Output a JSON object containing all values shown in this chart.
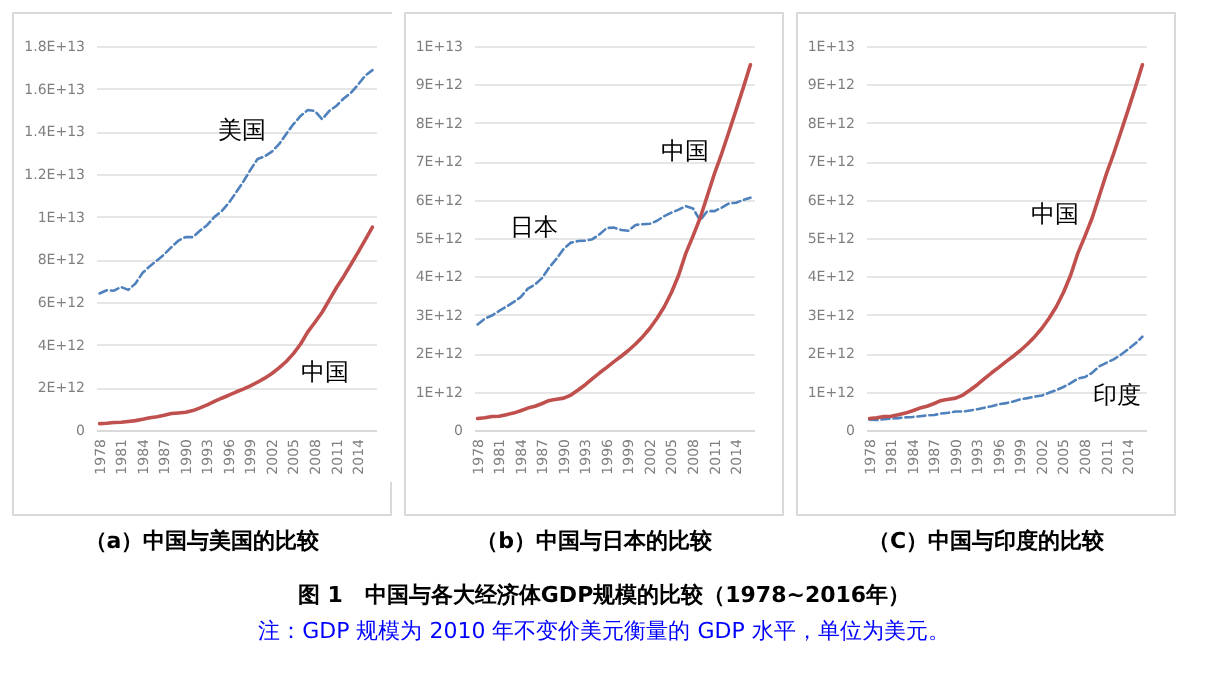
{
  "chart_data": [
    {
      "type": "line",
      "title": "（a）中国与美国的比较",
      "categories": [
        "1978",
        null,
        null,
        "1981",
        null,
        null,
        "1984",
        null,
        null,
        "1987",
        null,
        null,
        "1990",
        null,
        null,
        "1993",
        null,
        null,
        "1996",
        null,
        null,
        "1999",
        null,
        null,
        "2002",
        null,
        null,
        "2005",
        null,
        null,
        "2008",
        null,
        null,
        "2011",
        null,
        null,
        "2014",
        null,
        null
      ],
      "series": [
        {
          "color": "#4f81bd",
          "line_style": "dashed",
          "values": [
            6400000000000.0,
            6550000000000.0,
            6530000000000.0,
            6700000000000.0,
            6570000000000.0,
            6870000000000.0,
            7370000000000.0,
            7680000000000.0,
            7950000000000.0,
            8230000000000.0,
            8570000000000.0,
            8880000000000.0,
            9050000000000.0,
            9040000000000.0,
            9350000000000.0,
            9610000000000.0,
            9990000000000.0,
            10260000000000.0,
            10650000000000.0,
            11130000000000.0,
            11630000000000.0,
            12190000000000.0,
            12700000000000.0,
            12830000000000.0,
            13050000000000.0,
            13400000000000.0,
            13880000000000.0,
            14340000000000.0,
            14720000000000.0,
            15000000000000.0,
            14950000000000.0,
            14570000000000.0,
            14960000000000.0,
            15200000000000.0,
            15540000000000.0,
            15800000000000.0,
            16190000000000.0,
            16610000000000.0,
            16870000000000.0
          ]
        },
        {
          "color": "#c0504d",
          "line_style": "solid",
          "values": [
            300000000000.0,
            320000000000.0,
            350000000000.0,
            360000000000.0,
            400000000000.0,
            440000000000.0,
            500000000000.0,
            570000000000.0,
            620000000000.0,
            690000000000.0,
            770000000000.0,
            800000000000.0,
            830000000000.0,
            910000000000.0,
            1040000000000.0,
            1180000000000.0,
            1340000000000.0,
            1490000000000.0,
            1630000000000.0,
            1780000000000.0,
            1920000000000.0,
            2070000000000.0,
            2240000000000.0,
            2430000000000.0,
            2650000000000.0,
            2910000000000.0,
            3210000000000.0,
            3580000000000.0,
            4030000000000.0,
            4600000000000.0,
            5050000000000.0,
            5520000000000.0,
            6100000000000.0,
            6680000000000.0,
            7200000000000.0,
            7760000000000.0,
            8330000000000.0,
            8910000000000.0,
            9510000000000.0
          ]
        }
      ],
      "ylim": [
        0,
        18000000000000.0
      ],
      "yticks": [
        {
          "value": 0,
          "label": "0"
        },
        {
          "value": 2000000000000.0,
          "label": "2E+12"
        },
        {
          "value": 4000000000000.0,
          "label": "4E+12"
        },
        {
          "value": 6000000000000.0,
          "label": "6E+12"
        },
        {
          "value": 8000000000000.0,
          "label": "8E+12"
        },
        {
          "value": 10000000000000.0,
          "label": "1E+13"
        },
        {
          "value": 12000000000000.0,
          "label": "1.2E+13"
        },
        {
          "value": 14000000000000.0,
          "label": "1.4E+13"
        },
        {
          "value": 16000000000000.0,
          "label": "1.6E+13"
        },
        {
          "value": 18000000000000.0,
          "label": "1.8E+13"
        }
      ],
      "grid": "y",
      "annotations": [
        {
          "text": "美国",
          "x": "2002",
          "y": 13050000000000.0
        },
        {
          "text": "中国",
          "x": "2005",
          "y": 3580000000000.0
        },
        "图 1　中国与各大经济体GDP规模的比较（1978~2016年）",
        "注：GDP 规模为 2010 年不变价美元衡量的 GDP 水平，单位为美元。"
      ]
    },
    {
      "type": "line",
      "title": "（b）中国与日本的比较",
      "categories": [
        "1978",
        null,
        null,
        "1981",
        null,
        null,
        "1984",
        null,
        null,
        "1987",
        null,
        null,
        "1990",
        null,
        null,
        "1993",
        null,
        null,
        "1996",
        null,
        null,
        "1999",
        null,
        null,
        "2002",
        null,
        null,
        "2005",
        null,
        null,
        "2008",
        null,
        null,
        "2011",
        null,
        null,
        "2014",
        null,
        null
      ],
      "series": [
        {
          "color": "#4f81bd",
          "line_style": "dashed",
          "values": [
            2750000000000.0,
            2900000000000.0,
            2980000000000.0,
            3100000000000.0,
            3210000000000.0,
            3330000000000.0,
            3460000000000.0,
            3680000000000.0,
            3790000000000.0,
            3960000000000.0,
            4240000000000.0,
            4460000000000.0,
            4720000000000.0,
            4880000000000.0,
            4920000000000.0,
            4930000000000.0,
            4970000000000.0,
            5100000000000.0,
            5260000000000.0,
            5270000000000.0,
            5210000000000.0,
            5190000000000.0,
            5340000000000.0,
            5360000000000.0,
            5370000000000.0,
            5450000000000.0,
            5570000000000.0,
            5660000000000.0,
            5740000000000.0,
            5830000000000.0,
            5770000000000.0,
            5460000000000.0,
            5700000000000.0,
            5700000000000.0,
            5790000000000.0,
            5900000000000.0,
            5920000000000.0,
            5990000000000.0,
            6050000000000.0
          ]
        },
        {
          "color": "#c0504d",
          "line_style": "solid",
          "values": [
            300000000000.0,
            320000000000.0,
            350000000000.0,
            360000000000.0,
            400000000000.0,
            440000000000.0,
            500000000000.0,
            570000000000.0,
            620000000000.0,
            690000000000.0,
            770000000000.0,
            800000000000.0,
            830000000000.0,
            910000000000.0,
            1040000000000.0,
            1180000000000.0,
            1340000000000.0,
            1490000000000.0,
            1630000000000.0,
            1780000000000.0,
            1920000000000.0,
            2070000000000.0,
            2240000000000.0,
            2430000000000.0,
            2650000000000.0,
            2910000000000.0,
            3210000000000.0,
            3580000000000.0,
            4030000000000.0,
            4600000000000.0,
            5050000000000.0,
            5520000000000.0,
            6100000000000.0,
            6680000000000.0,
            7200000000000.0,
            7760000000000.0,
            8330000000000.0,
            8910000000000.0,
            9510000000000.0
          ]
        }
      ],
      "ylim": [
        0,
        10000000000000.0
      ],
      "yticks": [
        0,
        {
          "value": 1000000000000.0,
          "label": "1E+12"
        },
        {
          "value": 2000000000000.0,
          "label": "2E+12"
        },
        {
          "value": 3000000000000.0,
          "label": "3E+12"
        },
        {
          "value": 4000000000000.0,
          "label": "4E+12"
        },
        {
          "value": 5000000000000.0,
          "label": "5E+12"
        },
        {
          "value": 6000000000000.0,
          "label": "6E+12"
        },
        {
          "value": 7000000000000.0,
          "label": "7E+12"
        },
        {
          "value": 8000000000000.0,
          "label": "8E+12"
        },
        {
          "value": 9000000000000.0,
          "label": "9E+12"
        },
        {
          "value": 10000000000000.0,
          "label": "1E+13"
        }
      ],
      "grid": "y",
      "annotations": [
        {
          "text": "日本",
          "x": "1990",
          "y": 4720000000000.0
        },
        {
          "text": "中国",
          "x": "2011",
          "y": 6680000000000.0
        }
      ]
    },
    {
      "type": "line",
      "title": "（C）中国与印度的比较",
      "categories": [
        "1978",
        null,
        null,
        "1981",
        null,
        null,
        "1984",
        null,
        null,
        "1987",
        null,
        null,
        "1990",
        null,
        null,
        "1993",
        null,
        null,
        "1996",
        null,
        null,
        "1999",
        null,
        null,
        "2002",
        null,
        null,
        "2005",
        null,
        null,
        "2008",
        null,
        null,
        "2011",
        null,
        null,
        "2014",
        null,
        null
      ],
      "series": [
        {
          "color": "#4f81bd",
          "line_style": "dashed",
          "values": [
            270000000000.0,
            260000000000.0,
            280000000000.0,
            300000000000.0,
            310000000000.0,
            330000000000.0,
            340000000000.0,
            360000000000.0,
            380000000000.0,
            390000000000.0,
            430000000000.0,
            450000000000.0,
            480000000000.0,
            480000000000.0,
            510000000000.0,
            540000000000.0,
            580000000000.0,
            620000000000.0,
            670000000000.0,
            700000000000.0,
            740000000000.0,
            800000000000.0,
            830000000000.0,
            870000000000.0,
            900000000000.0,
            970000000000.0,
            1040000000000.0,
            1120000000000.0,
            1220000000000.0,
            1340000000000.0,
            1380000000000.0,
            1490000000000.0,
            1660000000000.0,
            1750000000000.0,
            1840000000000.0,
            1960000000000.0,
            2100000000000.0,
            2250000000000.0,
            2430000000000.0
          ]
        },
        {
          "color": "#c0504d",
          "line_style": "solid",
          "values": [
            300000000000.0,
            320000000000.0,
            350000000000.0,
            360000000000.0,
            400000000000.0,
            440000000000.0,
            500000000000.0,
            570000000000.0,
            620000000000.0,
            690000000000.0,
            770000000000.0,
            800000000000.0,
            830000000000.0,
            910000000000.0,
            1040000000000.0,
            1180000000000.0,
            1340000000000.0,
            1490000000000.0,
            1630000000000.0,
            1780000000000.0,
            1920000000000.0,
            2070000000000.0,
            2240000000000.0,
            2430000000000.0,
            2650000000000.0,
            2910000000000.0,
            3210000000000.0,
            3580000000000.0,
            4030000000000.0,
            4600000000000.0,
            5050000000000.0,
            5520000000000.0,
            6100000000000.0,
            6680000000000.0,
            7200000000000.0,
            7760000000000.0,
            8330000000000.0,
            8910000000000.0,
            9510000000000.0
          ]
        }
      ],
      "ylim": [
        0,
        10000000000000.0
      ],
      "yticks": [
        0,
        {
          "value": 1000000000000.0,
          "label": "1E+12"
        },
        {
          "value": 2000000000000.0,
          "label": "2E+12"
        },
        {
          "value": 3000000000000.0,
          "label": "3E+12"
        },
        {
          "value": 4000000000000.0,
          "label": "4E+12"
        },
        {
          "value": 5000000000000.0,
          "label": "5E+12"
        },
        {
          "value": 6000000000000.0,
          "label": "6E+12"
        },
        {
          "value": 7000000000000.0,
          "label": "7E+12"
        },
        {
          "value": 8000000000000.0,
          "label": "8E+12"
        },
        {
          "value": 9000000000000.0,
          "label": "9E+12"
        },
        {
          "value": 10000000000000.0,
          "label": "1E+13"
        }
      ],
      "grid": "y",
      "annotations": [
        {
          "text": "印度",
          "x": "2008",
          "y": 1380000000000.0
        },
        {
          "text": "中国",
          "x": "2008",
          "y": 5050000000000.0
        }
      ]
    }
  ]
}
